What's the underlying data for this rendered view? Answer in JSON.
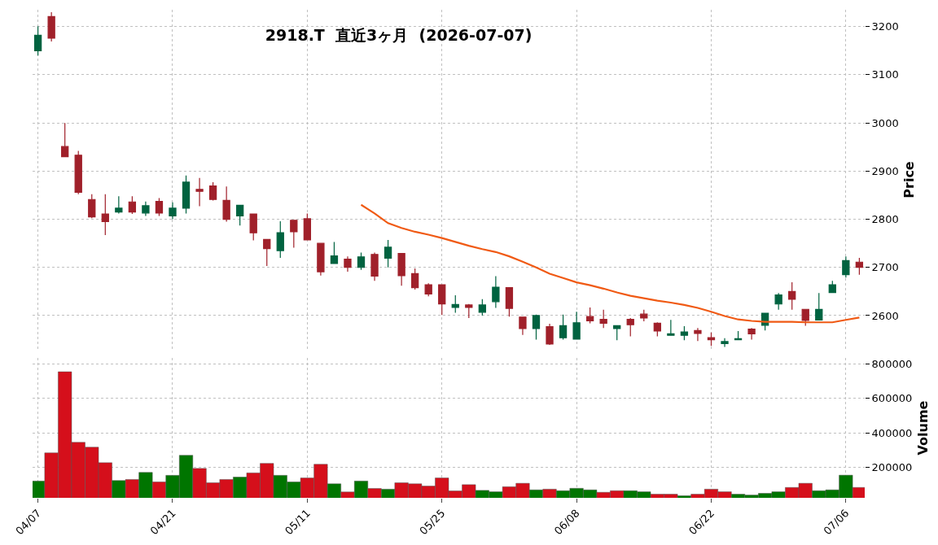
{
  "chart_data": [
    {
      "type": "candlestick",
      "title": "2918.T  直近3ヶ月  (2026-07-07)",
      "ylabel": "Price",
      "ohlc": [
        [
          3150,
          3201,
          3140,
          3182
        ],
        [
          3221,
          3230,
          3169,
          3176
        ],
        [
          2951,
          3000,
          2930,
          2930
        ],
        [
          2933,
          2942,
          2852,
          2856
        ],
        [
          2841,
          2852,
          2802,
          2805
        ],
        [
          2811,
          2852,
          2767,
          2795
        ],
        [
          2815,
          2848,
          2812,
          2823
        ],
        [
          2836,
          2848,
          2811,
          2815
        ],
        [
          2813,
          2837,
          2807,
          2828
        ],
        [
          2837,
          2844,
          2807,
          2813
        ],
        [
          2807,
          2835,
          2800,
          2823
        ],
        [
          2823,
          2891,
          2812,
          2877
        ],
        [
          2862,
          2886,
          2827,
          2858
        ],
        [
          2869,
          2877,
          2839,
          2841
        ],
        [
          2839,
          2868,
          2795,
          2800
        ],
        [
          2807,
          2829,
          2787,
          2829
        ],
        [
          2811,
          2811,
          2756,
          2772
        ],
        [
          2758,
          2758,
          2703,
          2739
        ],
        [
          2735,
          2796,
          2720,
          2772
        ],
        [
          2798,
          2798,
          2741,
          2774
        ],
        [
          2801,
          2812,
          2757,
          2757
        ],
        [
          2750,
          2750,
          2683,
          2691
        ],
        [
          2708,
          2753,
          2708,
          2724
        ],
        [
          2717,
          2723,
          2691,
          2700
        ],
        [
          2700,
          2731,
          2695,
          2722
        ],
        [
          2727,
          2731,
          2672,
          2682
        ],
        [
          2719,
          2757,
          2700,
          2742
        ],
        [
          2729,
          2729,
          2662,
          2683
        ],
        [
          2687,
          2698,
          2654,
          2658
        ],
        [
          2664,
          2667,
          2640,
          2645
        ],
        [
          2664,
          2664,
          2601,
          2624
        ],
        [
          2617,
          2642,
          2606,
          2623
        ],
        [
          2622,
          2624,
          2595,
          2617
        ],
        [
          2607,
          2634,
          2600,
          2622
        ],
        [
          2629,
          2682,
          2616,
          2659
        ],
        [
          2658,
          2658,
          2598,
          2615
        ],
        [
          2597,
          2597,
          2560,
          2573
        ],
        [
          2573,
          2602,
          2550,
          2600
        ],
        [
          2577,
          2583,
          2539,
          2541
        ],
        [
          2554,
          2602,
          2550,
          2579
        ],
        [
          2551,
          2608,
          2551,
          2585
        ],
        [
          2598,
          2617,
          2584,
          2589
        ],
        [
          2592,
          2612,
          2574,
          2584
        ],
        [
          2573,
          2579,
          2549,
          2579
        ],
        [
          2592,
          2595,
          2557,
          2581
        ],
        [
          2603,
          2612,
          2588,
          2595
        ],
        [
          2584,
          2586,
          2557,
          2568
        ],
        [
          2559,
          2591,
          2559,
          2562
        ],
        [
          2559,
          2578,
          2549,
          2566
        ],
        [
          2569,
          2574,
          2547,
          2563
        ],
        [
          2554,
          2565,
          2537,
          2550
        ],
        [
          2542,
          2553,
          2535,
          2546
        ],
        [
          2550,
          2568,
          2550,
          2552
        ],
        [
          2572,
          2574,
          2550,
          2562
        ],
        [
          2580,
          2605,
          2569,
          2605
        ],
        [
          2624,
          2647,
          2612,
          2643
        ],
        [
          2650,
          2669,
          2612,
          2634
        ],
        [
          2613,
          2613,
          2579,
          2590
        ],
        [
          2591,
          2647,
          2591,
          2613
        ],
        [
          2648,
          2672,
          2647,
          2664
        ],
        [
          2685,
          2723,
          2679,
          2714
        ],
        [
          2711,
          2720,
          2685,
          2700
        ]
      ],
      "colors": [
        "#006340",
        "#a0202a",
        "#a0202a",
        "#a0202a",
        "#a0202a",
        "#a0202a",
        "#006340",
        "#a0202a",
        "#006340",
        "#a0202a",
        "#006340",
        "#006340",
        "#a0202a",
        "#a0202a",
        "#a0202a",
        "#006340",
        "#a0202a",
        "#a0202a",
        "#006340",
        "#a0202a",
        "#a0202a",
        "#a0202a",
        "#006340",
        "#a0202a",
        "#006340",
        "#a0202a",
        "#006340",
        "#a0202a",
        "#a0202a",
        "#a0202a",
        "#a0202a",
        "#006340",
        "#a0202a",
        "#006340",
        "#006340",
        "#a0202a",
        "#a0202a",
        "#006340",
        "#a0202a",
        "#006340",
        "#006340",
        "#a0202a",
        "#a0202a",
        "#006340",
        "#a0202a",
        "#a0202a",
        "#a0202a",
        "#006340",
        "#006340",
        "#a0202a",
        "#a0202a",
        "#006340",
        "#006340",
        "#a0202a",
        "#006340",
        "#006340",
        "#a0202a",
        "#a0202a",
        "#006340",
        "#006340",
        "#006340",
        "#a0202a"
      ],
      "series": [
        {
          "type": "line",
          "color": "#f05a14",
          "values": [
            null,
            null,
            null,
            null,
            null,
            null,
            null,
            null,
            null,
            null,
            null,
            null,
            null,
            null,
            null,
            null,
            null,
            null,
            null,
            null,
            null,
            null,
            null,
            null,
            2830,
            2812,
            2792,
            2782,
            2774,
            2768,
            2761,
            2753,
            2745,
            2738,
            2732,
            2723,
            2712,
            2700,
            2687,
            2678,
            2669,
            2663,
            2656,
            2648,
            2641,
            2636,
            2631,
            2627,
            2622,
            2616,
            2608,
            2599,
            2592,
            2589,
            2587,
            2587,
            2587,
            2586,
            2586,
            2586,
            2591,
            2596
          ]
        }
      ],
      "ylim": [
        2529,
        3235
      ],
      "yticks": [
        2600,
        2700,
        2800,
        2900,
        3000,
        3100,
        3200
      ],
      "grid": true,
      "tick_labels": "y"
    },
    {
      "type": "bar",
      "ylabel": "Volume",
      "categories": [
        "04/07",
        null,
        null,
        null,
        null,
        null,
        null,
        null,
        null,
        null,
        "04/21",
        null,
        null,
        null,
        null,
        null,
        null,
        null,
        null,
        null,
        "05/11",
        null,
        null,
        null,
        null,
        null,
        null,
        null,
        null,
        null,
        "05/25",
        null,
        null,
        null,
        null,
        null,
        null,
        null,
        null,
        null,
        "06/08",
        null,
        null,
        null,
        null,
        null,
        null,
        null,
        null,
        null,
        "06/22",
        null,
        null,
        null,
        null,
        null,
        null,
        null,
        null,
        null,
        "07/06",
        null
      ],
      "values": [
        121000,
        284000,
        753000,
        345000,
        317000,
        227000,
        124000,
        130000,
        171000,
        116000,
        154000,
        270000,
        194000,
        111000,
        130000,
        144000,
        168000,
        223000,
        154000,
        116000,
        139000,
        218000,
        105000,
        58000,
        121000,
        78000,
        74000,
        111000,
        105000,
        92000,
        139000,
        64000,
        100000,
        67000,
        59000,
        88000,
        108000,
        70000,
        74000,
        65000,
        79000,
        70000,
        56000,
        65000,
        65000,
        59000,
        45000,
        45000,
        36000,
        45000,
        74000,
        59000,
        45000,
        40000,
        50000,
        59000,
        84000,
        108000,
        65000,
        70000,
        155000,
        84000
      ],
      "colors": [
        "#007500",
        "#d50f1b",
        "#d50f1b",
        "#d50f1b",
        "#d50f1b",
        "#d50f1b",
        "#007500",
        "#d50f1b",
        "#007500",
        "#d50f1b",
        "#007500",
        "#007500",
        "#d50f1b",
        "#d50f1b",
        "#d50f1b",
        "#007500",
        "#d50f1b",
        "#d50f1b",
        "#007500",
        "#007500",
        "#d50f1b",
        "#d50f1b",
        "#007500",
        "#d50f1b",
        "#007500",
        "#d50f1b",
        "#007500",
        "#d50f1b",
        "#d50f1b",
        "#d50f1b",
        "#d50f1b",
        "#d50f1b",
        "#d50f1b",
        "#007500",
        "#007500",
        "#d50f1b",
        "#d50f1b",
        "#007500",
        "#d50f1b",
        "#007500",
        "#007500",
        "#007500",
        "#d50f1b",
        "#d50f1b",
        "#007500",
        "#007500",
        "#d50f1b",
        "#d50f1b",
        "#007500",
        "#d50f1b",
        "#d50f1b",
        "#d50f1b",
        "#007500",
        "#007500",
        "#007500",
        "#007500",
        "#d50f1b",
        "#d50f1b",
        "#007500",
        "#007500",
        "#007500",
        "#d50f1b"
      ],
      "ylim": [
        24000,
        833000
      ],
      "yticks": [
        200000,
        400000,
        600000,
        800000
      ],
      "grid": true
    }
  ]
}
